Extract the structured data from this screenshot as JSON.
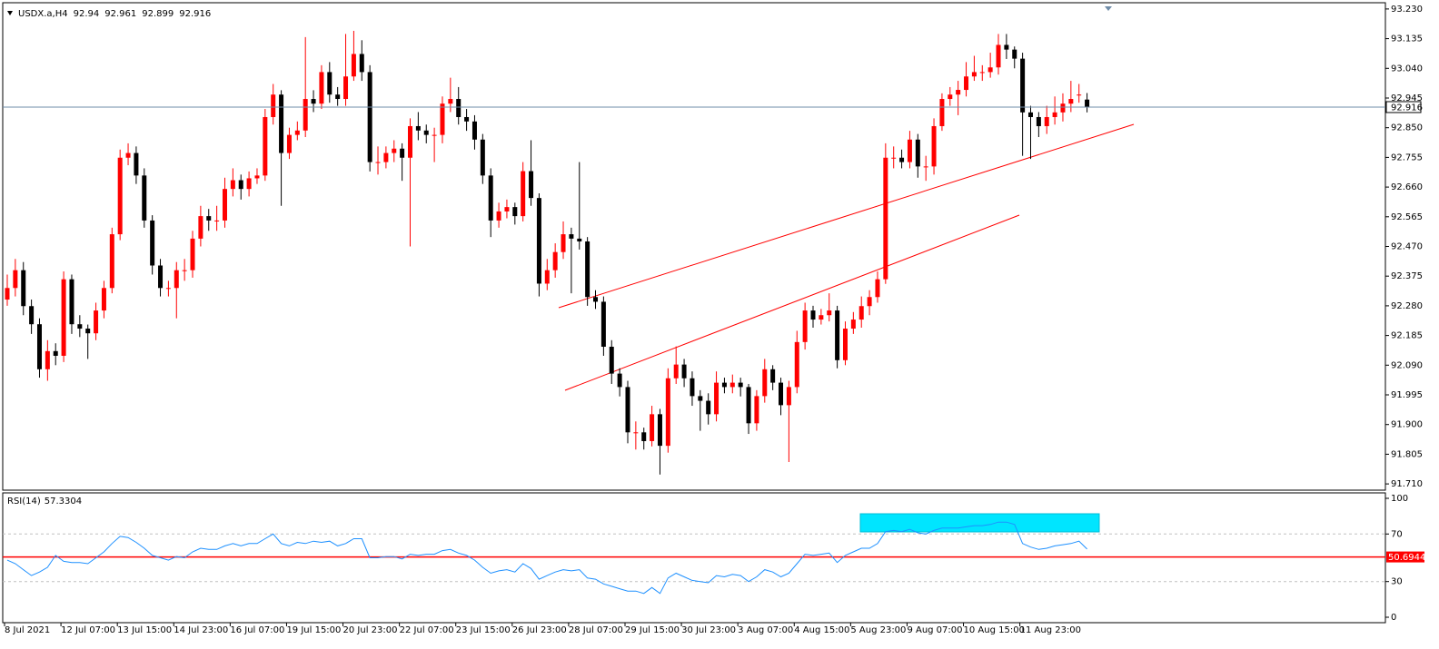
{
  "chart_data": {
    "type": "candlestick",
    "series": [
      {
        "name": "USDX.a,H4",
        "open": [
          92.3,
          92.337,
          92.394,
          92.279,
          92.221,
          92.077,
          92.135,
          92.12,
          92.365,
          92.221,
          92.207,
          92.192,
          92.265,
          92.337,
          92.509,
          92.754,
          92.769,
          92.697,
          92.553,
          92.409,
          92.337,
          92.337,
          92.394,
          92.394,
          92.495,
          92.567,
          92.553,
          92.553,
          92.654,
          92.682,
          92.654,
          92.688,
          92.697,
          92.884,
          92.956,
          92.769,
          92.827,
          92.841,
          92.942,
          92.927,
          93.028,
          92.956,
          92.942,
          93.014,
          93.086,
          93.028,
          92.74,
          92.74,
          92.769,
          92.783,
          92.754,
          92.855,
          92.841,
          92.827,
          92.827,
          92.927,
          92.942,
          92.884,
          92.87,
          92.812,
          92.697,
          92.553,
          92.582,
          92.596,
          92.567,
          92.711,
          92.625,
          92.351,
          92.394,
          92.452,
          92.509,
          92.495,
          92.486,
          92.308,
          92.293,
          92.149,
          92.063,
          92.02,
          91.875,
          91.875,
          91.847,
          91.933,
          91.832,
          92.048,
          92.092,
          92.048,
          91.991,
          91.976,
          91.933,
          92.034,
          92.02,
          92.034,
          92.02,
          91.904,
          91.991,
          92.077,
          92.034,
          91.962,
          92.02,
          92.164,
          92.265,
          92.236,
          92.25,
          92.265,
          92.106,
          92.207,
          92.236,
          92.279,
          92.308,
          92.365,
          92.754,
          92.754,
          92.74,
          92.812,
          92.726,
          92.726,
          92.855,
          92.942,
          92.956,
          92.971,
          93.014,
          93.028,
          93.028,
          93.043,
          93.115,
          93.1,
          93.071,
          92.899,
          92.884,
          92.855,
          92.884,
          92.899,
          92.927,
          92.956,
          92.94
        ],
        "high": [
          92.38,
          92.43,
          92.42,
          92.3,
          92.24,
          92.17,
          92.16,
          92.39,
          92.38,
          92.25,
          92.22,
          92.29,
          92.36,
          92.53,
          92.78,
          92.8,
          92.79,
          92.72,
          92.57,
          92.43,
          92.36,
          92.42,
          92.43,
          92.52,
          92.6,
          92.59,
          92.6,
          92.69,
          92.72,
          92.7,
          92.71,
          92.72,
          92.91,
          92.99,
          92.97,
          92.85,
          92.87,
          93.14,
          92.97,
          93.05,
          93.06,
          92.98,
          93.15,
          93.16,
          93.13,
          93.05,
          92.79,
          92.79,
          92.81,
          92.8,
          92.88,
          92.9,
          92.86,
          92.85,
          92.95,
          93.01,
          92.98,
          92.91,
          92.89,
          92.83,
          92.72,
          92.61,
          92.62,
          92.61,
          92.74,
          92.81,
          92.64,
          92.43,
          92.48,
          92.55,
          92.53,
          92.74,
          92.5,
          92.33,
          92.31,
          92.17,
          92.08,
          92.04,
          91.91,
          91.89,
          91.96,
          91.95,
          92.08,
          92.15,
          92.11,
          92.07,
          92.01,
          92.0,
          92.07,
          92.05,
          92.06,
          92.05,
          92.03,
          92.01,
          92.11,
          92.09,
          92.05,
          92.04,
          92.2,
          92.29,
          92.28,
          92.27,
          92.32,
          92.28,
          92.23,
          92.26,
          92.31,
          92.33,
          92.39,
          92.8,
          92.79,
          92.78,
          92.84,
          92.83,
          92.76,
          92.88,
          92.96,
          92.98,
          93.0,
          93.06,
          93.08,
          93.05,
          93.09,
          93.15,
          93.15,
          93.11,
          93.09,
          92.92,
          92.9,
          92.92,
          92.95,
          92.96,
          93.0,
          92.99,
          92.961
        ],
        "low": [
          92.28,
          92.31,
          92.25,
          92.19,
          92.05,
          92.04,
          92.09,
          92.1,
          92.19,
          92.18,
          92.11,
          92.17,
          92.24,
          92.32,
          92.49,
          92.73,
          92.67,
          92.53,
          92.38,
          92.31,
          92.31,
          92.24,
          92.36,
          92.37,
          92.47,
          92.52,
          92.52,
          92.53,
          92.63,
          92.62,
          92.63,
          92.67,
          92.68,
          92.86,
          92.6,
          92.75,
          92.81,
          92.82,
          92.9,
          92.91,
          92.93,
          92.92,
          92.92,
          93.0,
          93.0,
          92.71,
          92.7,
          92.72,
          92.74,
          92.68,
          92.47,
          92.81,
          92.8,
          92.74,
          92.8,
          92.9,
          92.86,
          92.84,
          92.78,
          92.67,
          92.5,
          92.53,
          92.56,
          92.54,
          92.55,
          92.6,
          92.31,
          92.33,
          92.37,
          92.43,
          92.32,
          92.46,
          92.28,
          92.27,
          92.12,
          92.03,
          91.99,
          91.84,
          91.82,
          91.82,
          91.83,
          91.74,
          91.81,
          92.03,
          92.02,
          91.96,
          91.88,
          91.9,
          91.91,
          92.0,
          92.0,
          91.99,
          91.87,
          91.88,
          91.97,
          92.01,
          91.93,
          91.78,
          92.0,
          92.14,
          92.21,
          92.22,
          92.23,
          92.08,
          92.09,
          92.19,
          92.21,
          92.25,
          92.29,
          92.35,
          92.72,
          92.72,
          92.72,
          92.69,
          92.68,
          92.7,
          92.84,
          92.92,
          92.89,
          92.95,
          93.0,
          93.0,
          93.01,
          93.02,
          93.07,
          93.04,
          92.76,
          92.75,
          92.82,
          92.83,
          92.86,
          92.87,
          92.9,
          92.93,
          92.899
        ],
        "close": [
          92.337,
          92.394,
          92.279,
          92.221,
          92.077,
          92.135,
          92.12,
          92.365,
          92.221,
          92.207,
          92.192,
          92.265,
          92.337,
          92.509,
          92.754,
          92.769,
          92.697,
          92.553,
          92.409,
          92.337,
          92.337,
          92.394,
          92.394,
          92.495,
          92.567,
          92.553,
          92.553,
          92.654,
          92.682,
          92.654,
          92.688,
          92.697,
          92.884,
          92.956,
          92.769,
          92.827,
          92.841,
          92.942,
          92.927,
          93.028,
          92.956,
          92.942,
          93.014,
          93.086,
          93.028,
          92.74,
          92.74,
          92.769,
          92.783,
          92.754,
          92.855,
          92.841,
          92.827,
          92.827,
          92.927,
          92.942,
          92.884,
          92.87,
          92.812,
          92.697,
          92.553,
          92.582,
          92.596,
          92.567,
          92.711,
          92.625,
          92.351,
          92.394,
          92.452,
          92.509,
          92.495,
          92.486,
          92.308,
          92.293,
          92.149,
          92.063,
          92.02,
          91.875,
          91.875,
          91.847,
          91.933,
          91.832,
          92.048,
          92.092,
          92.048,
          91.991,
          91.976,
          91.933,
          92.034,
          92.02,
          92.034,
          92.02,
          91.904,
          91.991,
          92.077,
          92.034,
          91.962,
          92.02,
          92.164,
          92.265,
          92.236,
          92.25,
          92.265,
          92.106,
          92.207,
          92.236,
          92.279,
          92.308,
          92.365,
          92.754,
          92.754,
          92.74,
          92.812,
          92.726,
          92.726,
          92.855,
          92.942,
          92.956,
          92.971,
          93.014,
          93.028,
          93.028,
          93.043,
          93.115,
          93.1,
          93.071,
          92.899,
          92.884,
          92.855,
          92.884,
          92.899,
          92.927,
          92.942,
          92.956,
          92.916
        ]
      }
    ],
    "up_color": "#ff0000",
    "down_color": "#000000",
    "ylim": [
      91.69,
      93.25
    ],
    "yticks": [
      {
        "value": 93.23,
        "label": "93.230"
      },
      93.135,
      {
        "value": 93.04,
        "label": "93.040"
      },
      92.945,
      {
        "value": 92.85,
        "label": "92.850"
      },
      92.755,
      {
        "value": 92.66,
        "label": "92.660"
      },
      92.565,
      {
        "value": 92.47,
        "label": "92.470"
      },
      92.375,
      {
        "value": 92.28,
        "label": "92.280"
      },
      92.185,
      {
        "value": 92.09,
        "label": "92.090"
      },
      91.995,
      {
        "value": 91.9,
        "label": "91.900"
      },
      91.805,
      {
        "value": 91.71,
        "label": "91.710"
      }
    ],
    "current_price": 92.916,
    "current_price_color": "#6f8ca8",
    "xticks": [
      {
        "value": 0,
        "label": "8 Jul 2021"
      },
      {
        "value": 7,
        "label": "12 Jul 07:00"
      },
      {
        "value": 14,
        "label": "13 Jul 15:00"
      },
      {
        "value": 21,
        "label": "14 Jul 23:00"
      },
      {
        "value": 28,
        "label": "16 Jul 07:00"
      },
      {
        "value": 35,
        "label": "19 Jul 15:00"
      },
      {
        "value": 42,
        "label": "20 Jul 23:00"
      },
      {
        "value": 49,
        "label": "22 Jul 07:00"
      },
      {
        "value": 56,
        "label": "23 Jul 15:00"
      },
      {
        "value": 63,
        "label": "26 Jul 23:00"
      },
      {
        "value": 70,
        "label": "28 Jul 07:00"
      },
      {
        "value": 77,
        "label": "29 Jul 15:00"
      },
      {
        "value": 84,
        "label": "30 Jul 23:00"
      },
      {
        "value": 91,
        "label": "3 Aug 07:00"
      },
      {
        "value": 98,
        "label": "4 Aug 15:00"
      },
      {
        "value": 105,
        "label": "5 Aug 23:00"
      },
      {
        "value": 112,
        "label": "9 Aug 07:00"
      },
      {
        "value": 119,
        "label": "10 Aug 15:00"
      },
      {
        "value": 126,
        "label": "11 Aug 23:00"
      }
    ],
    "rsi": {
      "name": "RSI(14)",
      "color": "#1e90ff",
      "values": [
        48,
        45,
        40,
        35,
        38,
        42,
        52,
        47,
        46,
        46,
        45,
        50,
        55,
        62,
        68,
        67,
        63,
        58,
        52,
        50,
        48,
        51,
        50,
        55,
        58,
        57,
        57,
        60,
        62,
        60,
        62,
        62,
        66,
        70,
        62,
        60,
        63,
        62,
        64,
        63,
        64,
        60,
        62,
        66,
        66,
        50,
        50,
        51,
        51,
        49,
        53,
        52,
        53,
        53,
        56,
        57,
        54,
        52,
        48,
        42,
        37,
        39,
        40,
        38,
        45,
        41,
        32,
        35,
        38,
        40,
        39,
        40,
        33,
        32,
        28,
        26,
        24,
        22,
        22,
        20,
        25,
        20,
        33,
        37,
        34,
        31,
        30,
        29,
        35,
        34,
        36,
        35,
        30,
        34,
        40,
        38,
        34,
        37,
        45,
        53,
        52,
        53,
        54,
        46,
        52,
        55,
        58,
        58,
        62,
        72,
        73,
        72,
        74,
        71,
        70,
        73,
        75,
        75,
        75,
        76,
        77,
        77,
        78,
        80,
        80,
        78,
        62,
        59,
        57,
        58,
        60,
        61,
        62,
        64,
        57.3304
      ],
      "ylim": [
        0,
        100
      ],
      "yticks": [
        100,
        70,
        30,
        0
      ],
      "dashed_levels": [
        70,
        30
      ],
      "level": 50.6944,
      "level_color": "#ff0000"
    }
  }
}
